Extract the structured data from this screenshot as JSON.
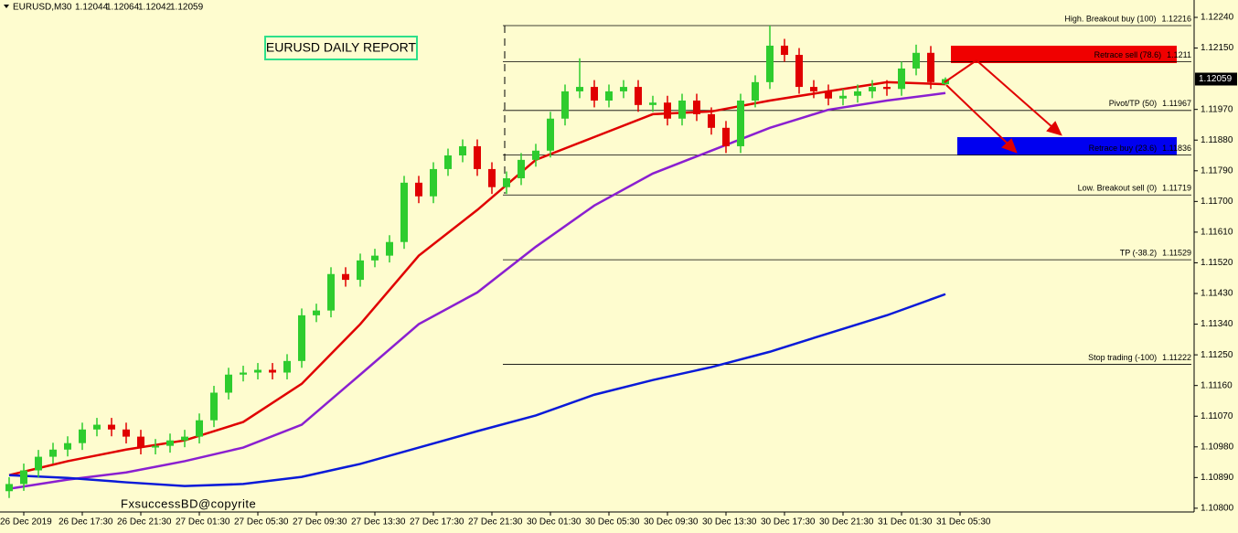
{
  "chart_data": {
    "type": "candlestick",
    "symbol": "EURUSD,M30",
    "title": "EURUSD DAILY REPORT",
    "watermark": "FxsuccessBD@copyrite",
    "up_color": "#2ecc2e",
    "down_color": "#e00000",
    "ylim": [
      1.10789,
      1.12291
    ],
    "yticks": [
      {
        "value": 1.1224,
        "label": "1.12240"
      },
      {
        "value": 1.1215,
        "label": "1.12150"
      },
      {
        "value": 1.1197,
        "label": "1.11970"
      },
      {
        "value": 1.1188,
        "label": "1.11880"
      },
      {
        "value": 1.1179,
        "label": "1.11790"
      },
      {
        "value": 1.117,
        "label": "1.11700"
      },
      {
        "value": 1.1161,
        "label": "1.11610"
      },
      {
        "value": 1.1152,
        "label": "1.11520"
      },
      {
        "value": 1.1143,
        "label": "1.11430"
      },
      {
        "value": 1.1134,
        "label": "1.11340"
      },
      {
        "value": 1.1125,
        "label": "1.11250"
      },
      {
        "value": 1.1116,
        "label": "1.11160"
      },
      {
        "value": 1.1107,
        "label": "1.11070"
      },
      {
        "value": 1.1098,
        "label": "1.10980"
      },
      {
        "value": 1.1089,
        "label": "1.10890"
      },
      {
        "value": 1.108,
        "label": "1.10800"
      }
    ],
    "time_labels": [
      "26 Dec 2019",
      "26 Dec 17:30",
      "26 Dec 21:30",
      "27 Dec 01:30",
      "27 Dec 05:30",
      "27 Dec 09:30",
      "27 Dec 13:30",
      "27 Dec 17:30",
      "27 Dec 21:30",
      "30 Dec 01:30",
      "30 Dec 05:30",
      "30 Dec 09:30",
      "30 Dec 13:30",
      "30 Dec 17:30",
      "30 Dec 21:30",
      "31 Dec 01:30",
      "31 Dec 05:30"
    ],
    "candles": [
      [
        1.1085,
        1.10891,
        1.1083,
        1.10871
      ],
      [
        1.10871,
        1.10931,
        1.10851,
        1.10911
      ],
      [
        1.10911,
        1.10971,
        1.10891,
        1.10951
      ],
      [
        1.10951,
        1.10992,
        1.10931,
        1.10972
      ],
      [
        1.10972,
        1.11011,
        1.10952,
        1.10991
      ],
      [
        1.10991,
        1.11051,
        1.10971,
        1.11031
      ],
      [
        1.11031,
        1.11065,
        1.11011,
        1.11045
      ],
      [
        1.11045,
        1.11065,
        1.11011,
        1.11031
      ],
      [
        1.11031,
        1.11051,
        1.1099,
        1.1101
      ],
      [
        1.1101,
        1.1103,
        1.10958,
        1.10978
      ],
      [
        1.10978,
        1.11003,
        1.10958,
        1.10983
      ],
      [
        1.10983,
        1.11019,
        1.10963,
        1.10999
      ],
      [
        1.10999,
        1.1103,
        1.10979,
        1.1101
      ],
      [
        1.1101,
        1.11078,
        1.1099,
        1.11058
      ],
      [
        1.11058,
        1.11159,
        1.11038,
        1.11139
      ],
      [
        1.11139,
        1.11212,
        1.11119,
        1.11192
      ],
      [
        1.11192,
        1.11218,
        1.11172,
        1.11198
      ],
      [
        1.11198,
        1.11226,
        1.11178,
        1.11206
      ],
      [
        1.11206,
        1.11226,
        1.11178,
        1.11198
      ],
      [
        1.11198,
        1.11252,
        1.11178,
        1.11232
      ],
      [
        1.11232,
        1.11386,
        1.11212,
        1.11366
      ],
      [
        1.11366,
        1.114,
        1.11346,
        1.1138
      ],
      [
        1.1138,
        1.11507,
        1.1136,
        1.11487
      ],
      [
        1.11487,
        1.11507,
        1.1145,
        1.1147
      ],
      [
        1.1147,
        1.11547,
        1.1145,
        1.11527
      ],
      [
        1.11527,
        1.11561,
        1.11507,
        1.11541
      ],
      [
        1.11541,
        1.11601,
        1.11521,
        1.11581
      ],
      [
        1.11581,
        1.11775,
        1.11561,
        1.11755
      ],
      [
        1.11755,
        1.11775,
        1.11695,
        1.11715
      ],
      [
        1.11715,
        1.11815,
        1.11695,
        1.11795
      ],
      [
        1.11795,
        1.11855,
        1.11775,
        1.11835
      ],
      [
        1.11835,
        1.11882,
        1.11815,
        1.11862
      ],
      [
        1.11862,
        1.11882,
        1.11775,
        1.11795
      ],
      [
        1.11795,
        1.11815,
        1.11722,
        1.11742
      ],
      [
        1.11742,
        1.11788,
        1.11722,
        1.11768
      ],
      [
        1.11768,
        1.11842,
        1.11748,
        1.11822
      ],
      [
        1.11822,
        1.11869,
        1.11802,
        1.11849
      ],
      [
        1.11849,
        1.11963,
        1.11829,
        1.11943
      ],
      [
        1.11943,
        1.12043,
        1.11923,
        1.12023
      ],
      [
        1.12023,
        1.1212,
        1.12003,
        1.12036
      ],
      [
        1.12036,
        1.12056,
        1.11976,
        1.11996
      ],
      [
        1.11996,
        1.12043,
        1.11976,
        1.12023
      ],
      [
        1.12023,
        1.12056,
        1.12003,
        1.12036
      ],
      [
        1.12036,
        1.12056,
        1.11963,
        1.11983
      ],
      [
        1.11983,
        1.1201,
        1.11963,
        1.1199
      ],
      [
        1.1199,
        1.1201,
        1.11923,
        1.11943
      ],
      [
        1.11943,
        1.12016,
        1.11923,
        1.11996
      ],
      [
        1.11996,
        1.12016,
        1.11936,
        1.11956
      ],
      [
        1.11956,
        1.11976,
        1.11896,
        1.11916
      ],
      [
        1.11916,
        1.11936,
        1.11842,
        1.11862
      ],
      [
        1.11862,
        1.12016,
        1.11842,
        1.11996
      ],
      [
        1.11996,
        1.1207,
        1.11976,
        1.1205
      ],
      [
        1.1205,
        1.12216,
        1.1203,
        1.12157
      ],
      [
        1.12157,
        1.12177,
        1.1211,
        1.1213
      ],
      [
        1.1213,
        1.1215,
        1.12016,
        1.12036
      ],
      [
        1.12036,
        1.12056,
        1.12003,
        1.12023
      ],
      [
        1.12023,
        1.12043,
        1.11982,
        1.12002
      ],
      [
        1.12002,
        1.1203,
        1.11982,
        1.1201
      ],
      [
        1.1201,
        1.12043,
        1.1199,
        1.12023
      ],
      [
        1.12023,
        1.12056,
        1.12003,
        1.12036
      ],
      [
        1.12036,
        1.12056,
        1.1201,
        1.1203
      ],
      [
        1.1203,
        1.1211,
        1.1201,
        1.1209
      ],
      [
        1.1209,
        1.1216,
        1.1207,
        1.12136
      ],
      [
        1.12136,
        1.12156,
        1.1203,
        1.1205
      ],
      [
        1.12044,
        1.12064,
        1.12042,
        1.12059
      ]
    ],
    "series": [
      {
        "color": "#e00000",
        "values": [
          1.10897,
          1.10938,
          1.10972,
          1.10999,
          1.11053,
          1.11165,
          1.1134,
          1.11541,
          1.11675,
          1.11822,
          1.11889,
          1.11956,
          1.11964,
          1.11996,
          1.12023,
          1.1205,
          1.12044
        ]
      },
      {
        "color": "#8a1fd0",
        "values": [
          1.10857,
          1.10884,
          1.10905,
          1.10938,
          1.10978,
          1.11045,
          1.11192,
          1.1134,
          1.11433,
          1.11567,
          1.11688,
          1.11782,
          1.11849,
          1.11916,
          1.11969,
          1.11996,
          1.12018
        ]
      },
      {
        "color": "#0a1ad8",
        "values": [
          1.10897,
          1.10889,
          1.10876,
          1.10865,
          1.10871,
          1.10892,
          1.1093,
          1.10978,
          1.11026,
          1.11072,
          1.11133,
          1.11176,
          1.11214,
          1.11259,
          1.11313,
          1.11366,
          1.11428
        ]
      }
    ],
    "levels": [
      {
        "label": "High. Breakout buy (100)",
        "value": 1.12216
      },
      {
        "label": "Retrace sell (78.6)",
        "value": 1.1211
      },
      {
        "label": "Pivot/TP (50)",
        "value": 1.11967
      },
      {
        "label": "Retrace buy (23.6)",
        "value": 1.11836
      },
      {
        "label": "Low. Breakout sell (0)",
        "value": 1.11719
      },
      {
        "label": "TP (-38.2)",
        "value": 1.11529
      },
      {
        "label": "Stop trading (-100)",
        "value": 1.11222
      }
    ]
  }
}
